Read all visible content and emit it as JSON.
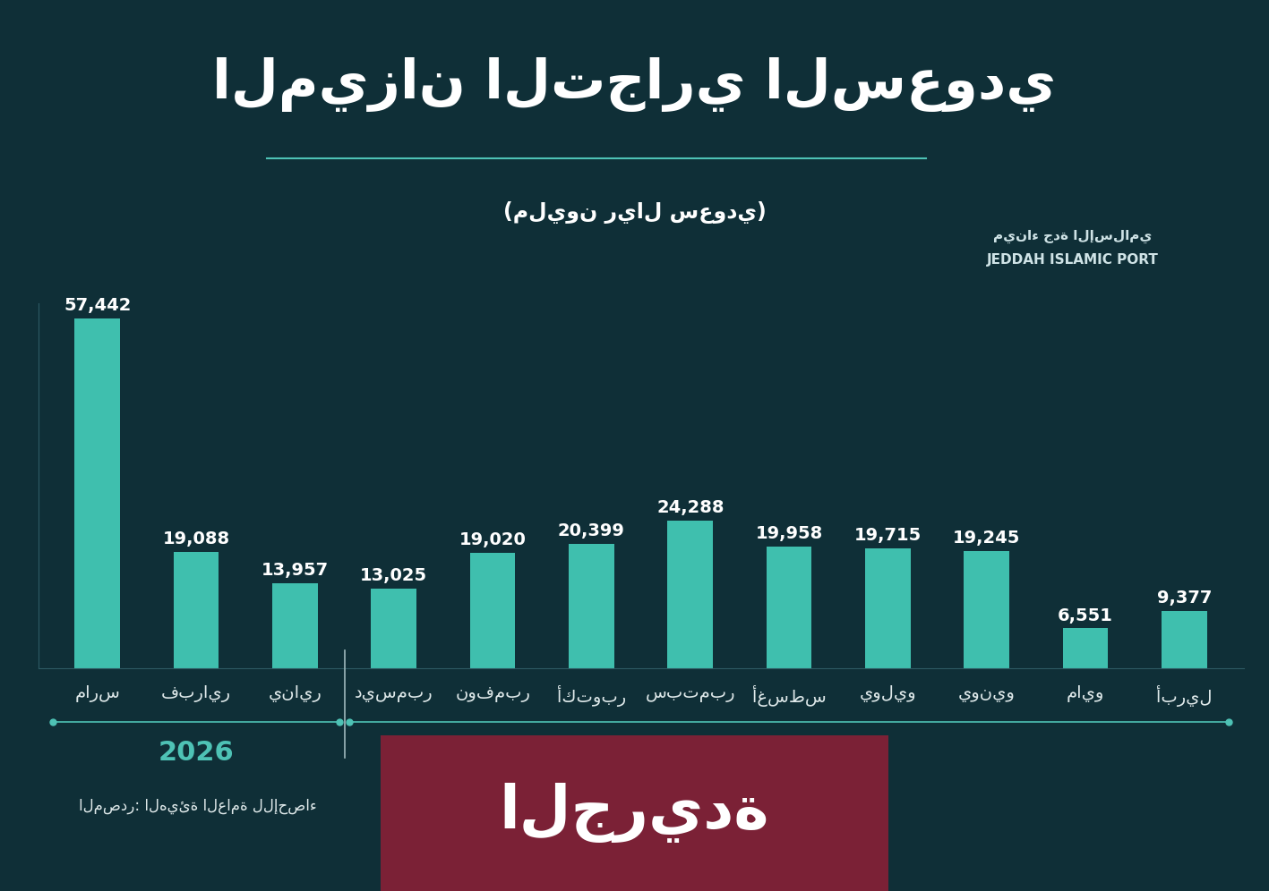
{
  "chart_data": {
    "type": "bar",
    "title": "الميزان التجاري السعودي",
    "subtitle": "(مليون ريال سعودي)",
    "categories": [
      "مارس",
      "فبراير",
      "يناير",
      "ديسمبر",
      "نوفمبر",
      "أكتوبر",
      "سبتمبر",
      "أغسطس",
      "يوليو",
      "يونيو",
      "مايو",
      "أبريل"
    ],
    "values": [
      57442,
      19088,
      13957,
      13025,
      19020,
      20399,
      24288,
      19958,
      19715,
      19245,
      6551,
      9377
    ],
    "value_labels": [
      "57,442",
      "19,088",
      "13,957",
      "13,025",
      "19,020",
      "20,399",
      "24,288",
      "19,958",
      "19,715",
      "19,245",
      "6,551",
      "9,377"
    ],
    "data_labels": true,
    "tick_labels": "x",
    "grid": false,
    "color": "#3fbfae",
    "ylim": [
      0,
      60000
    ],
    "yticks": [],
    "groups": [
      {
        "label": "2026",
        "categories": [
          "مارس",
          "فبراير",
          "يناير"
        ]
      }
    ],
    "source": "المصدر: الهيئة العامة للإحصاء",
    "background_texts": [
      "ميناء جدة الإسلامي",
      "JEDDAH ISLAMIC PORT"
    ],
    "watermark": "الجريدة"
  }
}
